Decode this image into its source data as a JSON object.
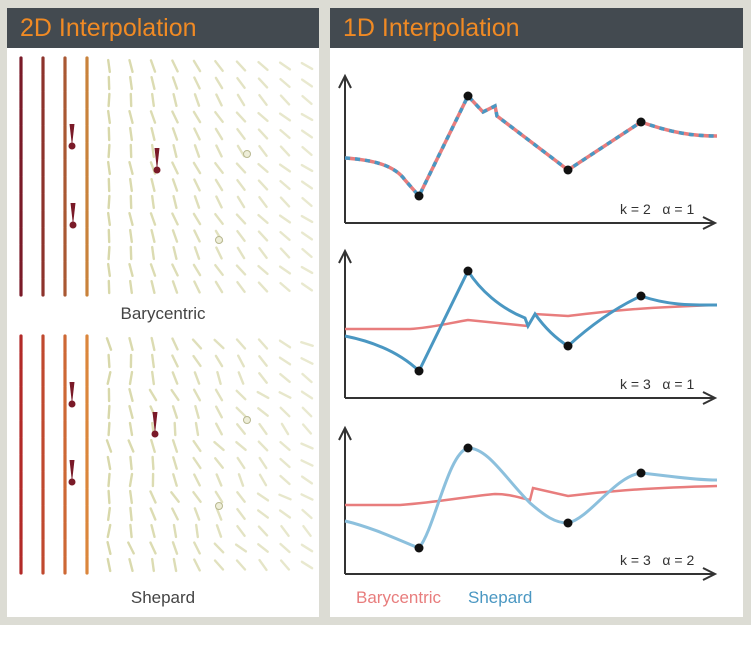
{
  "left_panel": {
    "title": "2D Interpolation",
    "captions": [
      "Barycentric",
      "Shepard"
    ]
  },
  "right_panel": {
    "title": "1D Interpolation",
    "plots": [
      {
        "param_label": "k = 2   α = 1"
      },
      {
        "param_label": "k = 3   α = 1"
      },
      {
        "param_label": "k = 3   α = 2"
      }
    ],
    "legend": [
      {
        "label": "Barycentric",
        "color": "#e87d7d"
      },
      {
        "label": "Shepard",
        "color": "#4a97c2"
      }
    ]
  },
  "colors": {
    "header_bg": "#434a50",
    "header_text": "#f08a24",
    "frame": "#dcdcd4",
    "axis": "#333333"
  }
}
